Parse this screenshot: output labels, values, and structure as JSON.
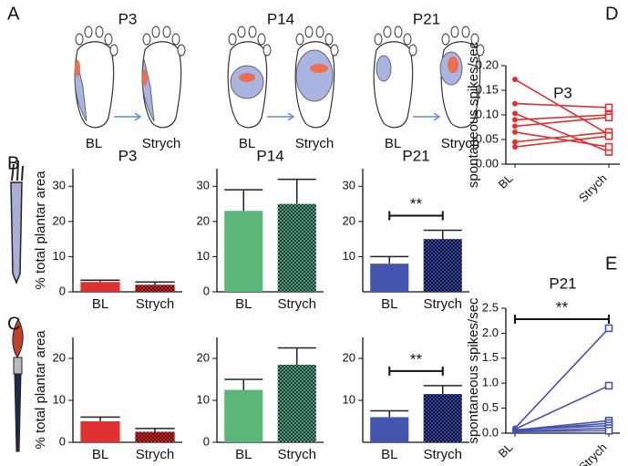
{
  "panel_letters": [
    "A",
    "B",
    "C",
    "D",
    "E"
  ],
  "panel_a": {
    "groups": [
      {
        "label": "P3",
        "color": "#e03030",
        "before": "BL",
        "after": "Strych"
      },
      {
        "label": "P14",
        "color": "#4cb050",
        "before": "BL",
        "after": "Strych"
      },
      {
        "label": "P21",
        "color": "#3a45a8",
        "before": "BL",
        "after": "Strych"
      }
    ]
  },
  "chart_data": [
    {
      "type": "bar",
      "title": "P3",
      "ylabel": "% total plantar area",
      "color": "#e03030",
      "fills": [
        "solid",
        "crosshatch"
      ],
      "categories": [
        "BL",
        "Strych"
      ],
      "values": [
        2.8,
        2.0
      ],
      "errors": [
        0.5,
        0.8
      ],
      "ylim": [
        0,
        35
      ],
      "yticks": [
        0,
        10,
        20,
        30
      ]
    },
    {
      "type": "bar",
      "title": "P14",
      "color": "#5cb87a",
      "fills": [
        "solid",
        "crosshatch"
      ],
      "categories": [
        "BL",
        "Strych"
      ],
      "values": [
        23,
        25
      ],
      "errors": [
        6,
        7
      ],
      "ylim": [
        0,
        35
      ],
      "yticks": [
        0,
        10,
        20,
        30
      ]
    },
    {
      "type": "bar",
      "title": "P21",
      "color": "#4455b0",
      "fills": [
        "solid",
        "crosshatch"
      ],
      "categories": [
        "BL",
        "Strych"
      ],
      "values": [
        8,
        15
      ],
      "errors": [
        2,
        2.5
      ],
      "ylim": [
        0,
        35
      ],
      "yticks": [
        10,
        20,
        30
      ],
      "annotations": [
        {
          "text": "**"
        }
      ]
    },
    {
      "type": "bar",
      "ylabel": "% total plantar area",
      "color": "#e03030",
      "fills": [
        "solid",
        "crosshatch"
      ],
      "categories": [
        "BL",
        "Strych"
      ],
      "values": [
        5,
        2.5
      ],
      "errors": [
        1,
        0.8
      ],
      "ylim": [
        0,
        25
      ],
      "yticks": [
        0,
        10,
        20
      ]
    },
    {
      "type": "bar",
      "color": "#5cb87a",
      "fills": [
        "solid",
        "crosshatch"
      ],
      "categories": [
        "BL",
        "Strych"
      ],
      "values": [
        12.5,
        18.5
      ],
      "errors": [
        2.5,
        4
      ],
      "ylim": [
        0,
        25
      ],
      "yticks": [
        0,
        10,
        20
      ]
    },
    {
      "type": "bar",
      "color": "#4455b0",
      "fills": [
        "solid",
        "crosshatch"
      ],
      "categories": [
        "BL",
        "Strych"
      ],
      "values": [
        6,
        11.5
      ],
      "errors": [
        1.5,
        2
      ],
      "ylim": [
        0,
        25
      ],
      "yticks": [
        10,
        20
      ],
      "annotations": [
        {
          "text": "**"
        }
      ]
    },
    {
      "type": "paired",
      "title": "P3",
      "ylabel": "spontaneous spikes/sec",
      "color": "#e03030",
      "categories": [
        "BL",
        "Strych"
      ],
      "ylim": [
        0,
        0.2
      ],
      "yticks": [
        {
          "value": 0,
          "label": "0.00"
        },
        {
          "value": 0.05,
          "label": "0.05"
        },
        {
          "value": 0.1,
          "label": "0.10"
        },
        {
          "value": 0.15,
          "label": "0.15"
        },
        {
          "value": 0.2,
          "label": "0.20"
        }
      ],
      "series": [
        {
          "values": [
            0.172,
            0.06
          ]
        },
        {
          "values": [
            0.123,
            0.115
          ]
        },
        {
          "values": [
            0.103,
            0.025
          ]
        },
        {
          "values": [
            0.09,
            0.1
          ]
        },
        {
          "values": [
            0.077,
            0.095
          ]
        },
        {
          "values": [
            0.065,
            0.035
          ]
        },
        {
          "values": [
            0.045,
            0.065
          ]
        },
        {
          "values": [
            0.035,
            0.057
          ]
        }
      ]
    },
    {
      "type": "paired",
      "title": "P21",
      "ylabel": "spontaneous spikes/sec",
      "color": "#4455b0",
      "categories": [
        "BL",
        "Strych"
      ],
      "ylim": [
        0,
        2.5
      ],
      "yticks": [
        {
          "value": 0,
          "label": "0.0"
        },
        {
          "value": 0.5,
          "label": "0.5"
        },
        {
          "value": 1,
          "label": "1.0"
        },
        {
          "value": 1.5,
          "label": "1.5"
        },
        {
          "value": 2,
          "label": "2.0"
        },
        {
          "value": 2.5,
          "label": "2.5"
        }
      ],
      "series": [
        {
          "values": [
            0.1,
            2.1
          ]
        },
        {
          "values": [
            0.08,
            0.95
          ]
        },
        {
          "values": [
            0.06,
            0.25
          ]
        },
        {
          "values": [
            0.05,
            0.2
          ]
        },
        {
          "values": [
            0.07,
            0.15
          ]
        },
        {
          "values": [
            0.04,
            0.1
          ]
        },
        {
          "values": [
            0.03,
            0.05
          ]
        }
      ],
      "annotations": [
        {
          "text": "**"
        }
      ]
    }
  ]
}
